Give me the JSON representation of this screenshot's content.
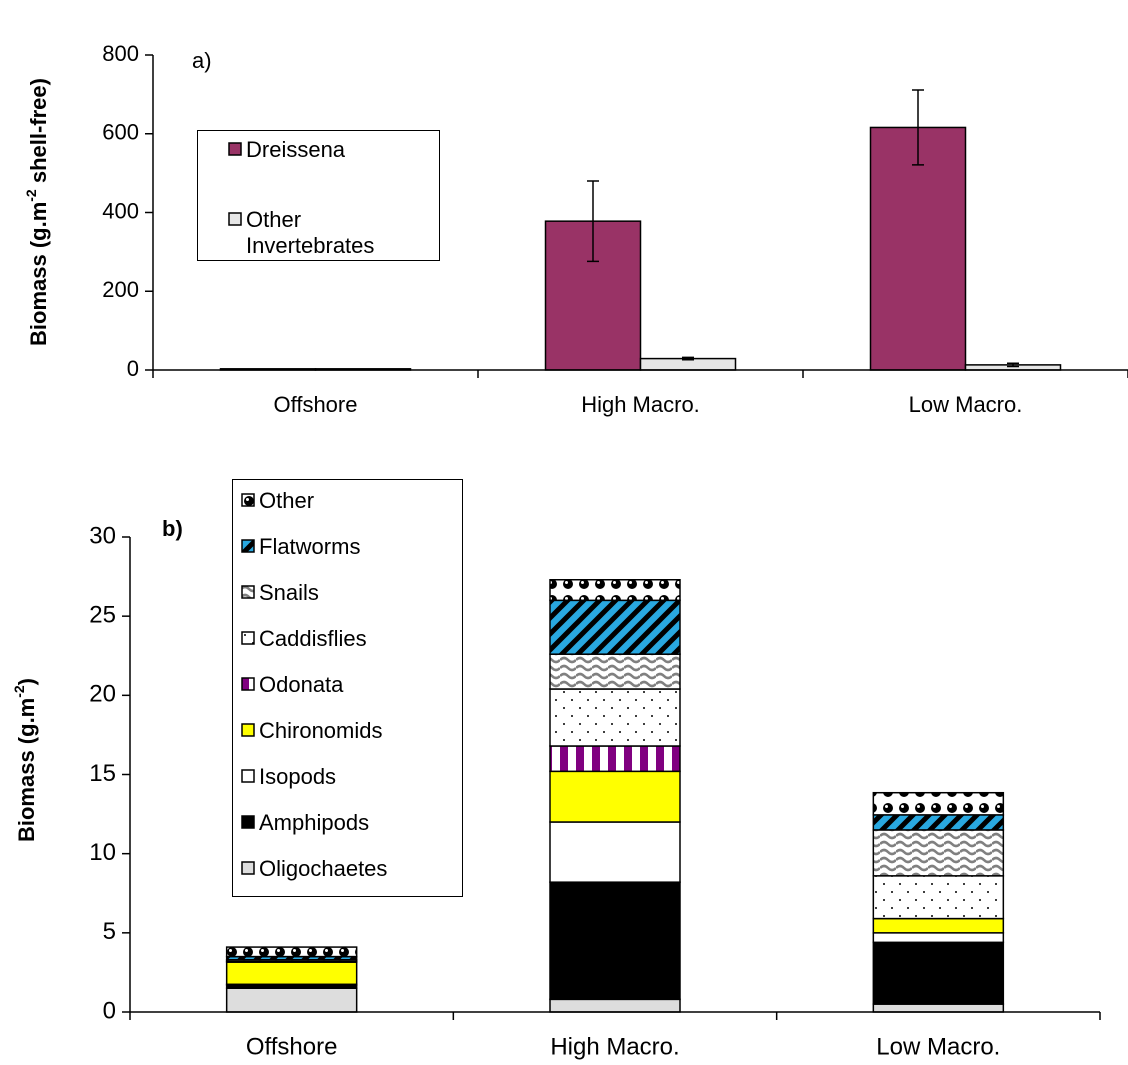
{
  "chart_data": [
    {
      "type": "grouped-bar",
      "title": "a)",
      "ylabel": [
        "Biomass (g.m",
        "-2",
        " shell-free)"
      ],
      "categories": [
        "Offshore",
        "High Macro.",
        "Low Macro."
      ],
      "ylim": [
        0,
        800
      ],
      "yticks": [
        0,
        200,
        400,
        600,
        800
      ],
      "series": [
        {
          "name": "Dreissena",
          "color": "#993366",
          "values": [
            3,
            378,
            616
          ],
          "errors": [
            null,
            102,
            95
          ]
        },
        {
          "name": "Other Invertebrates",
          "color": "#e6e6e6",
          "values": [
            3,
            29,
            13
          ],
          "errors": [
            null,
            3,
            4
          ]
        }
      ]
    },
    {
      "type": "stacked-bar",
      "title": "b)",
      "ylabel": [
        "Biomass (g.m",
        "-2",
        ")"
      ],
      "categories": [
        "Offshore",
        "High Macro.",
        "Low Macro."
      ],
      "ylim": [
        0,
        30
      ],
      "yticks": [
        0,
        5,
        10,
        15,
        20,
        25,
        30
      ],
      "series": [
        {
          "name": "Oligochaetes",
          "color": "#dddddd",
          "pattern": "solid",
          "values": [
            1.5,
            0.8,
            0.5
          ]
        },
        {
          "name": "Amphipods",
          "color": "#000000",
          "pattern": "solid",
          "values": [
            0.2,
            7.4,
            3.9
          ]
        },
        {
          "name": "Isopods",
          "color": "#ffffff",
          "pattern": "solid",
          "values": [
            0.05,
            3.8,
            0.6
          ]
        },
        {
          "name": "Chironomids",
          "color": "#ffff00",
          "pattern": "solid",
          "values": [
            1.4,
            3.2,
            0.9
          ]
        },
        {
          "name": "Odonata",
          "color": "#800080",
          "pattern": "vertical-stripes",
          "values": [
            0,
            1.6,
            0
          ]
        },
        {
          "name": "Caddisflies",
          "color": "#000000",
          "pattern": "dots",
          "values": [
            0.05,
            3.6,
            2.7
          ]
        },
        {
          "name": "Snails",
          "color": "#808080",
          "pattern": "waves",
          "values": [
            0.1,
            2.2,
            2.9
          ]
        },
        {
          "name": "Flatworms",
          "color": "#29a8e0",
          "pattern": "diagonal-stripes",
          "values": [
            0.2,
            3.4,
            0.95
          ]
        },
        {
          "name": "Other",
          "color": "#000000",
          "pattern": "balls",
          "values": [
            0.6,
            1.3,
            1.4
          ]
        }
      ]
    }
  ]
}
